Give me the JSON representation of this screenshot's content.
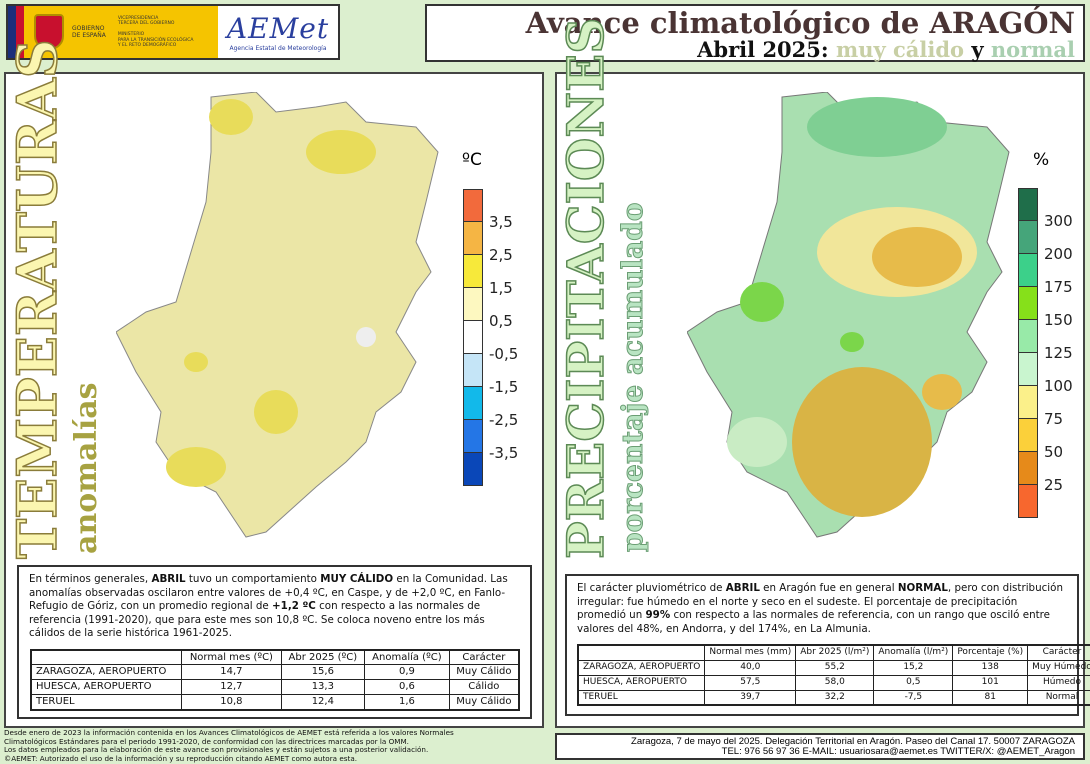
{
  "header": {
    "gov_line1": "GOBIERNO",
    "gov_line2": "DE ESPAÑA",
    "vice1": "VICEPRESIDENCIA",
    "vice2": "TERCERA DEL GOBIERNO",
    "min1": "MINISTERIO",
    "min2": "PARA LA TRANSICIÓN ECOLÓGICA",
    "min3": "Y EL RETO DEMOGRÁFICO",
    "aemet_logo": "AEMet",
    "aemet_sub": "Agencia Estatal de Meteorología",
    "title_main": "Avance climatológico de ",
    "title_region": "ARAGÓN",
    "subtitle_prefix": "Abril 2025: ",
    "subtitle_temp": "muy cálido",
    "subtitle_y": " y ",
    "subtitle_prec": "normal"
  },
  "temperature": {
    "vertical_title": "TEMPERATURAS",
    "vertical_subtitle": "anomalías",
    "unit": "ºC",
    "legend_labels": [
      "3,5",
      "2,5",
      "1,5",
      "0,5",
      "-0,5",
      "-1,5",
      "-2,5",
      "-3,5"
    ],
    "legend_colors": [
      "#f26a3c",
      "#f5b544",
      "#f7e93a",
      "#fdf8c0",
      "#ffffff",
      "#c5e5f7",
      "#12b9ea",
      "#2476e6",
      "#0a47b8"
    ],
    "text_parts": [
      "En términos generales, ",
      "ABRIL",
      " tuvo un comportamiento ",
      "MUY CÁLIDO",
      " en la Comunidad. Las anomalías observadas oscilaron entre valores de +0,4 ºC, en Caspe, y de +2,0 ºC, en Fanlo-Refugio de Góriz, con un promedio regional de ",
      "+1,2 ºC",
      " con respecto a las normales de referencia (1991-2020), que para este mes son 10,8 ºC. Se coloca noveno entre los más cálidos de la serie histórica 1961-2025."
    ],
    "table": {
      "headers": [
        "Normal mes (ºC)",
        "Abr 2025 (ºC)",
        "Anomalía (ºC)",
        "Carácter"
      ],
      "rows": [
        [
          "ZARAGOZA, AEROPUERTO",
          "14,7",
          "15,6",
          "0,9",
          "Muy Cálido"
        ],
        [
          "HUESCA, AEROPUERTO",
          "12,7",
          "13,3",
          "0,6",
          "Cálido"
        ],
        [
          "TERUEL",
          "10,8",
          "12,4",
          "1,6",
          "Muy Cálido"
        ]
      ]
    }
  },
  "precipitation": {
    "vertical_title": "PRECIPITACIONES",
    "vertical_subtitle": "porcentaje acumulado",
    "unit": "%",
    "legend_labels": [
      "300",
      "200",
      "175",
      "150",
      "125",
      "100",
      "75",
      "50",
      "25"
    ],
    "legend_colors": [
      "#1f6e4a",
      "#45a57a",
      "#3cd08a",
      "#86e01a",
      "#98eaa8",
      "#c9f5cf",
      "#fbf08a",
      "#fbd03a",
      "#e68a1a",
      "#f7672e"
    ],
    "text_parts": [
      "El carácter pluviométrico de ",
      "ABRIL",
      " en Aragón fue en general ",
      "NORMAL",
      ", pero con distribución irregular: fue húmedo en el norte y seco en el sudeste. El porcentaje de precipitación promedió un ",
      "99%",
      " con respecto a las normales de referencia, con un rango que osciló entre valores del 48%, en Andorra, y del 174%, en La Almunia."
    ],
    "table": {
      "headers": [
        "Normal mes (mm)",
        "Abr 2025 (l/m²)",
        "Anomalía (l/m²)",
        "Porcentaje (%)",
        "Carácter"
      ],
      "rows": [
        [
          "ZARAGOZA, AEROPUERTO",
          "40,0",
          "55,2",
          "15,2",
          "138",
          "Muy Húmedo"
        ],
        [
          "HUESCA, AEROPUERTO",
          "57,5",
          "58,0",
          "0,5",
          "101",
          "Húmedo"
        ],
        [
          "TERUEL",
          "39,7",
          "32,2",
          "-7,5",
          "81",
          "Normal"
        ]
      ]
    }
  },
  "footer": {
    "note1": "Desde enero de 2023 la información contenida en los Avances Climatológicos de AEMET está referida a los valores Normales",
    "note2": "Climatológicos Estándares para el periodo 1991-2020, de conformidad con las directrices marcadas por la OMM.",
    "note3": "Los datos empleados para la elaboración de este avance son provisionales y están sujetos a una posterior validación.",
    "note4": "©AEMET: Autorizado el uso de la información y su reproducción citando AEMET como autora esta.",
    "contact1": "Zaragoza, 7 de mayo del 2025. Delegación Territorial en Aragón. Paseo del Canal 17. 50007 ZARAGOZA",
    "contact2": "TEL: 976 56 97 36 E-MAIL: usuariosara@aemet.es  TWITTER/X: @AEMET_Aragon"
  }
}
